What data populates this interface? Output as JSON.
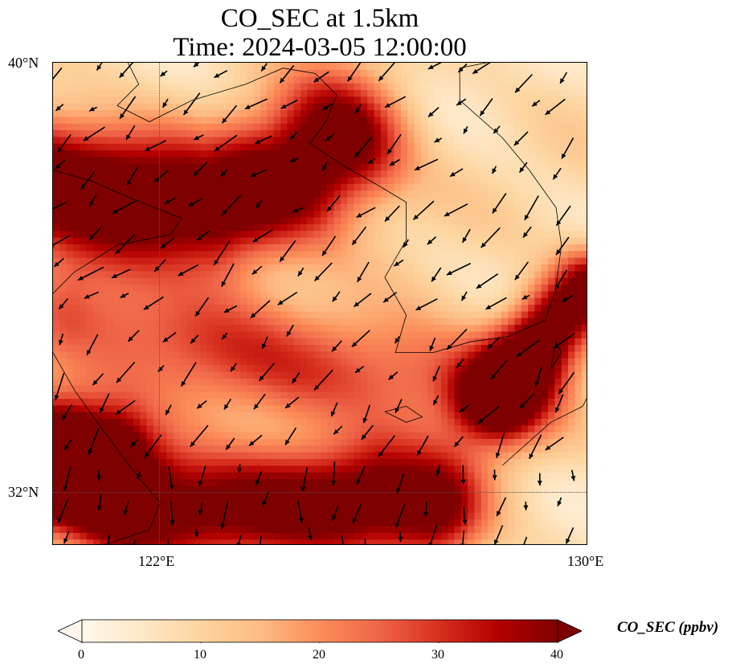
{
  "title_line1": "CO_SEC at 1.5km",
  "title_line2": "Time: 2024-03-05 12:00:00",
  "axes": {
    "lat_ticks": [
      "40°N",
      "32°N"
    ],
    "lon_ticks": [
      "122°E",
      "130°E"
    ]
  },
  "colorbar": {
    "label": "CO_SEC (ppbv)",
    "ticks": [
      "0",
      "10",
      "20",
      "30",
      "40"
    ],
    "min": 0,
    "max": 40,
    "extend": "both",
    "colormap": [
      "#fff7ec",
      "#fee8c8",
      "#fdd49e",
      "#fdbb84",
      "#fc8d59",
      "#ef6548",
      "#d7301f",
      "#b30000",
      "#7f0000"
    ]
  },
  "map_data": {
    "type": "field-map",
    "variable": "CO_SEC",
    "level": "1.5km",
    "units": "ppbv",
    "lon_range": [
      120,
      130
    ],
    "lat_range": [
      31,
      40
    ],
    "gridlines": {
      "lon": [
        122
      ],
      "lat": [
        32
      ]
    },
    "plumes": [
      {
        "name": "northern band",
        "peak": 42,
        "path": [
          [
            120.0,
            37.8
          ],
          [
            121.5,
            37.5
          ],
          [
            123.0,
            37.3
          ],
          [
            124.5,
            37.9
          ],
          [
            125.3,
            38.5
          ]
        ],
        "width_deg": 0.85
      },
      {
        "name": "southern band",
        "peak": 38,
        "path": [
          [
            120.0,
            32.5
          ],
          [
            121.5,
            31.6
          ],
          [
            123.0,
            31.7
          ],
          [
            124.5,
            31.8
          ],
          [
            126.0,
            31.9
          ],
          [
            127.0,
            31.7
          ]
        ],
        "width_deg": 0.75
      },
      {
        "name": "southwest blob",
        "peak": 35,
        "path": [
          [
            120.0,
            32.7
          ],
          [
            121.0,
            32.6
          ]
        ],
        "width_deg": 0.7
      },
      {
        "name": "east sea edge",
        "peak": 38,
        "path": [
          [
            128.3,
            33.8
          ],
          [
            129.4,
            35.2
          ],
          [
            130.0,
            35.8
          ]
        ],
        "width_deg": 0.5
      },
      {
        "name": "yellow sea band",
        "peak": 20,
        "path": [
          [
            120.5,
            35.3
          ],
          [
            122.5,
            34.8
          ],
          [
            124.5,
            34.3
          ],
          [
            126.5,
            34.2
          ],
          [
            128.5,
            33.9
          ]
        ],
        "width_deg": 0.8
      }
    ],
    "background_level": 8,
    "wind_vectors_visible": true
  }
}
